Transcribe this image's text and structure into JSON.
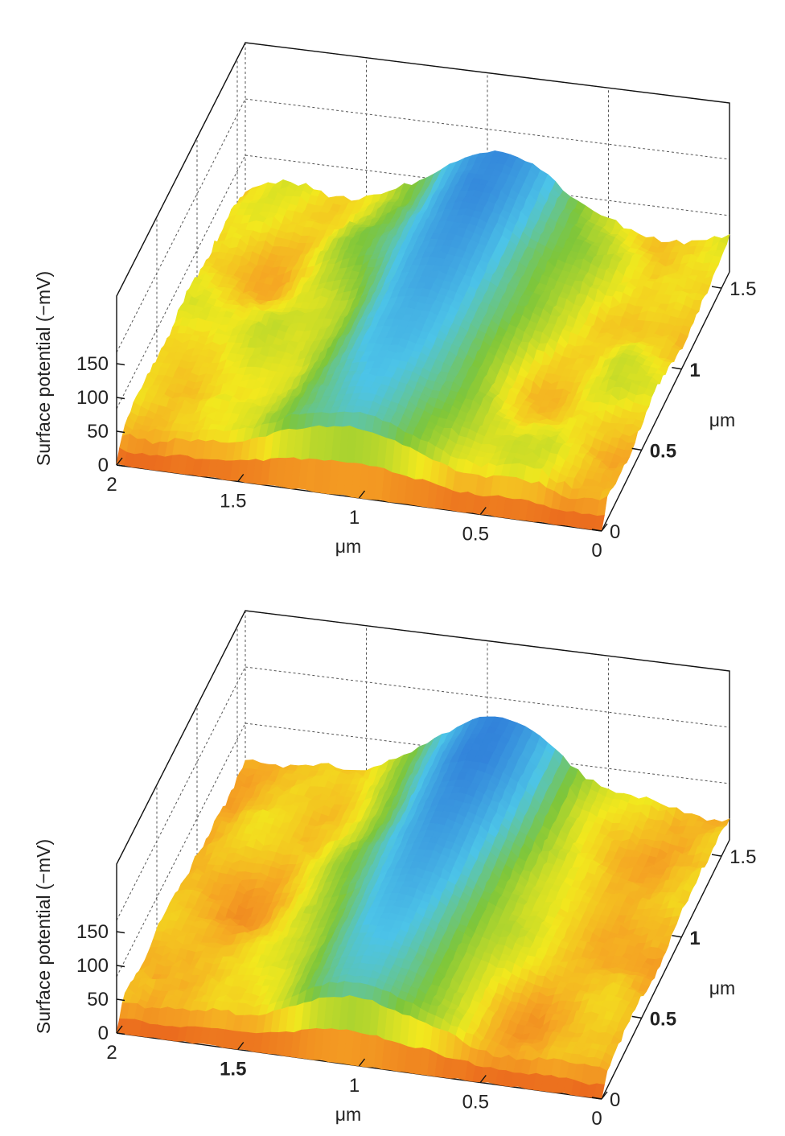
{
  "colors": {
    "low": "#e85a1c",
    "mid_low": "#f5a623",
    "mid": "#f2e81e",
    "mid_high": "#7ec63a",
    "high": "#4cc4e8",
    "peak": "#2a6fd6",
    "axis": "#111111",
    "grid": "#555555"
  },
  "chart_data": [
    {
      "type": "surface3d",
      "zlabel": "Surface potential (−mV)",
      "xlabel": "μm",
      "ylabel": "μm",
      "z_ticks": [
        "0",
        "50",
        "100",
        "150"
      ],
      "x_ticks": [
        "0",
        "0.5",
        "1",
        "1.5",
        "2"
      ],
      "y_ticks": [
        "0",
        "0.5",
        "1",
        "1.5"
      ],
      "y_ticks_bold": [
        "0.5",
        "1"
      ],
      "x_ticks_bold": [],
      "zlim": [
        0,
        250
      ],
      "xlim": [
        0,
        2
      ],
      "ylim": [
        0,
        1.6
      ],
      "ridge": {
        "center_x": 1.0,
        "width": 0.25,
        "peak_mV": 135,
        "dip_mV": 90
      },
      "background_mV": [
        20,
        60
      ],
      "feature_notes": [
        "green bumps near x=0.3, y=1.0"
      ]
    },
    {
      "type": "surface3d",
      "zlabel": "Surface potential (−mV)",
      "xlabel": "μm",
      "ylabel": "μm",
      "z_ticks": [
        "0",
        "50",
        "100",
        "150"
      ],
      "x_ticks": [
        "0",
        "0.5",
        "1",
        "1.5",
        "2"
      ],
      "y_ticks": [
        "0",
        "0.5",
        "1",
        "1.5"
      ],
      "y_ticks_bold": [
        "0.5",
        "1"
      ],
      "x_ticks_bold": [
        "1.5"
      ],
      "zlim": [
        0,
        250
      ],
      "xlim": [
        0,
        2
      ],
      "ylim": [
        0,
        1.6
      ],
      "ridge": {
        "center_x": 1.0,
        "width": 0.25,
        "peak_mV": 140,
        "dip_mV": 85
      },
      "background_mV": [
        15,
        45
      ],
      "feature_notes": []
    }
  ]
}
